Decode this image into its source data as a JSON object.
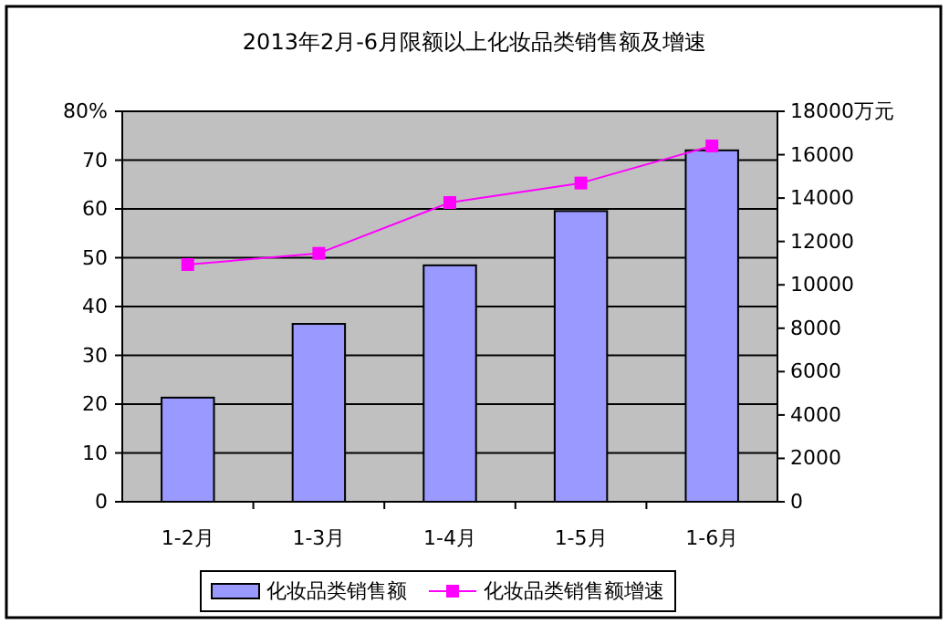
{
  "chart_data": {
    "type": "bar",
    "title": "2013年2月-6月限额以上化妆品类销售额及增速",
    "categories": [
      "1-2月",
      "1-3月",
      "1-4月",
      "1-5月",
      "1-6月"
    ],
    "series": [
      {
        "name": "化妆品类销售额",
        "axis": "y2",
        "color": "#9999ff",
        "values": [
          4800,
          8200,
          10900,
          13400,
          16200
        ]
      },
      {
        "name": "化妆品类销售额增速",
        "type": "line",
        "axis": "y",
        "color": "#ff00ff",
        "marker": "square",
        "values": [
          48.6,
          50.9,
          61.3,
          65.3,
          72.9
        ]
      }
    ],
    "ylim": [
      0,
      80
    ],
    "yticks": [
      0,
      10,
      20,
      30,
      40,
      50,
      60,
      70,
      {
        "value": 80,
        "label": "80%"
      }
    ],
    "y2lim": [
      0,
      18000
    ],
    "y2ticks": [
      0,
      2000,
      4000,
      6000,
      8000,
      10000,
      12000,
      14000,
      16000,
      {
        "value": 18000,
        "label": "18000万元"
      }
    ],
    "grid": "y",
    "legend": "bottom"
  }
}
